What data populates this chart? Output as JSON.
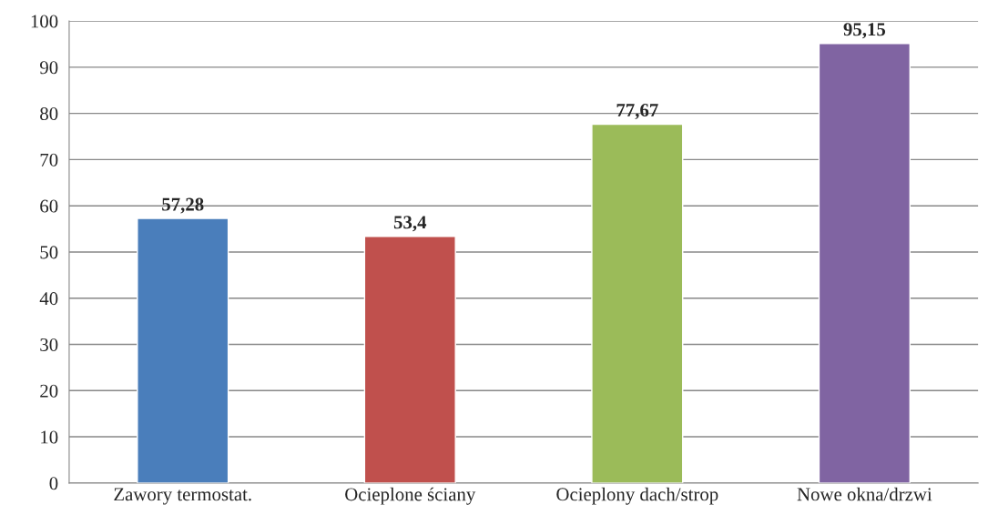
{
  "chart_data": {
    "type": "bar",
    "categories": [
      "Zawory termostat.",
      "Ocieplone ściany",
      "Ocieplony dach/strop",
      "Nowe okna/drzwi"
    ],
    "values": [
      57.28,
      53.4,
      77.67,
      95.15
    ],
    "colors": [
      "#4a7ebb",
      "#c0504d",
      "#9bbb59",
      "#8064a2"
    ],
    "value_labels": [
      "57,28",
      "53,4",
      "77,67",
      "95,15"
    ],
    "ylim": [
      0,
      100
    ],
    "yticks": [
      0,
      10,
      20,
      30,
      40,
      50,
      60,
      70,
      80,
      90,
      100
    ],
    "grid": "y",
    "legend": false
  }
}
